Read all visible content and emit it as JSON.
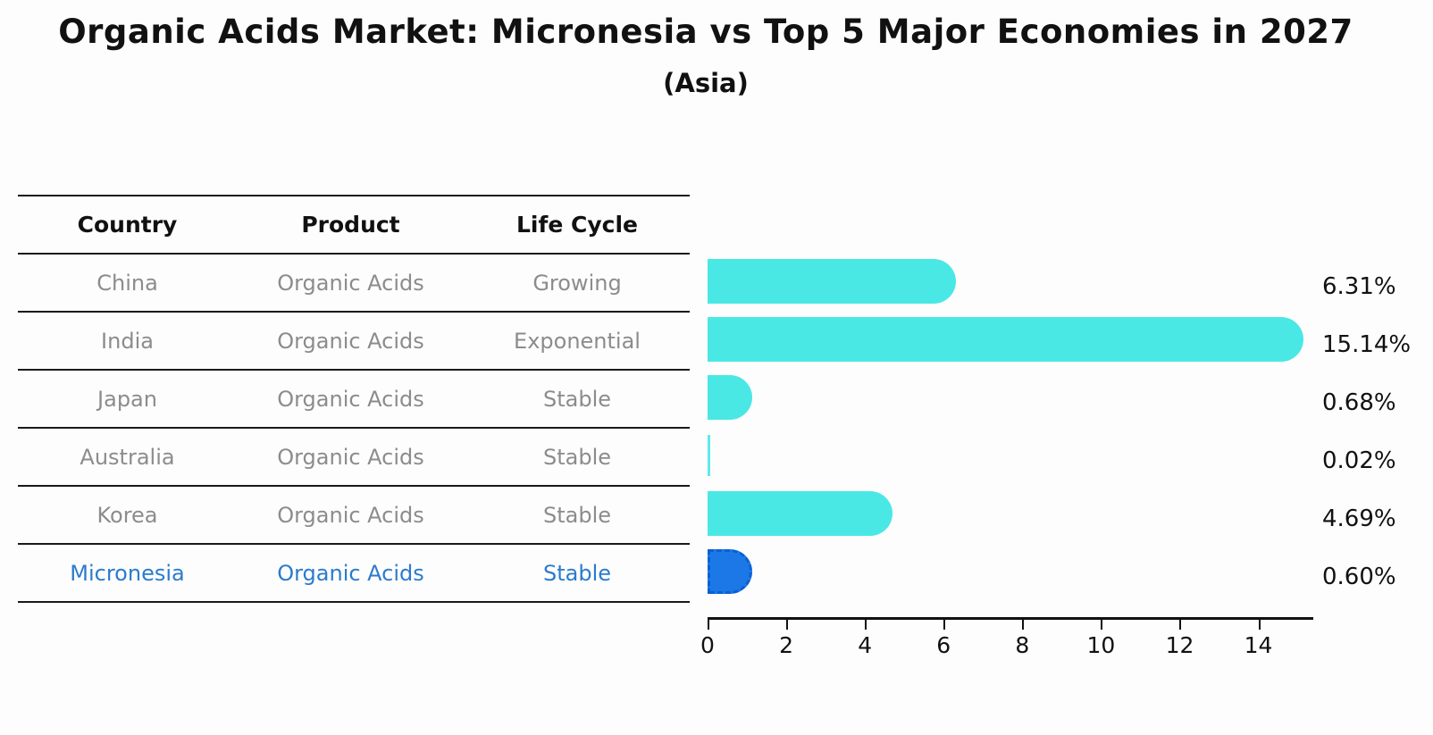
{
  "title": "Organic Acids Market: Micronesia vs Top 5 Major Economies in 2027",
  "subtitle": "(Asia)",
  "table": {
    "headers": [
      "Country",
      "Product",
      "Life Cycle"
    ]
  },
  "chart_data": {
    "type": "bar",
    "orientation": "horizontal",
    "title": "Organic Acids Market: Micronesia vs Top 5 Major Economies in 2027",
    "subtitle": "(Asia)",
    "categories": [
      "China",
      "India",
      "Japan",
      "Australia",
      "Korea",
      "Micronesia"
    ],
    "values": [
      6.31,
      15.14,
      0.68,
      0.02,
      4.69,
      0.6
    ],
    "value_labels": [
      "6.31%",
      "15.14%",
      "0.68%",
      "0.02%",
      "4.69%",
      "0.60%"
    ],
    "xticks": [
      0,
      2,
      4,
      6,
      8,
      10,
      12,
      14
    ],
    "xlim": [
      0,
      15.35
    ],
    "grid": false,
    "legend": false,
    "bar_color": "#4AE8E5",
    "highlight_bar_color": "#1C78E6",
    "highlight_text_color": "#2b7bce",
    "row_text_color": "#8c8c8c",
    "highlight_index": 5,
    "rows": [
      {
        "country": "China",
        "product": "Organic Acids",
        "life_cycle": "Growing",
        "value": 6.31,
        "label": "6.31%",
        "highlight": false
      },
      {
        "country": "India",
        "product": "Organic Acids",
        "life_cycle": "Exponential",
        "value": 15.14,
        "label": "15.14%",
        "highlight": false
      },
      {
        "country": "Japan",
        "product": "Organic Acids",
        "life_cycle": "Stable",
        "value": 0.68,
        "label": "0.68%",
        "highlight": false
      },
      {
        "country": "Australia",
        "product": "Organic Acids",
        "life_cycle": "Stable",
        "value": 0.02,
        "label": "0.02%",
        "highlight": false
      },
      {
        "country": "Korea",
        "product": "Organic Acids",
        "life_cycle": "Stable",
        "value": 4.69,
        "label": "4.69%",
        "highlight": false
      },
      {
        "country": "Micronesia",
        "product": "Organic Acids",
        "life_cycle": "Stable",
        "value": 0.6,
        "label": "0.60%",
        "highlight": true
      }
    ]
  }
}
